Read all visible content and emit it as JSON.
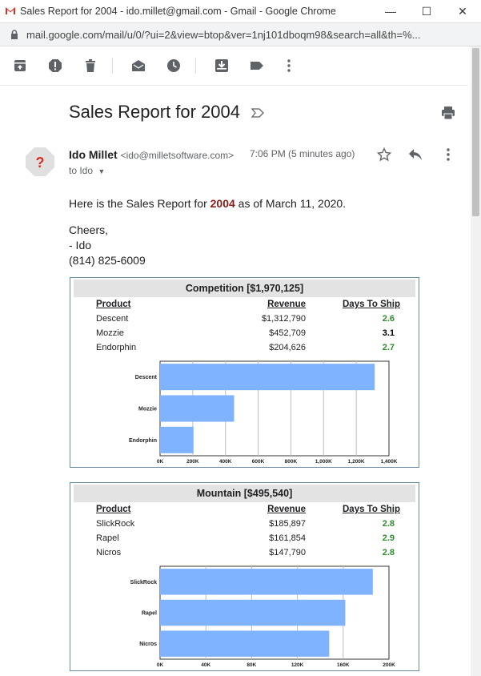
{
  "window": {
    "title": "Sales Report for 2004 - ido.millet@gmail.com - Gmail - Google Chrome",
    "url": "mail.google.com/mail/u/0/?ui=2&view=btop&ver=1nj101dboqm98&search=all&th=%..."
  },
  "toolbar": {
    "icons": [
      "archive-icon",
      "report-spam-icon",
      "delete-icon",
      "mark-unread-icon",
      "snooze-icon",
      "move-to-inbox-icon",
      "label-icon",
      "more-icon"
    ]
  },
  "email": {
    "subject": "Sales Report for 2004",
    "sender_name": "Ido Millet",
    "sender_email": "<ido@milletsoftware.com>",
    "time": "7:06 PM (5 minutes ago)",
    "to": "to Ido",
    "body_prefix": "Here is the Sales Report for ",
    "body_year": "2004",
    "body_suffix": " as of March 11, 2020.",
    "cheers": "Cheers,",
    "signoff": "- Ido",
    "phone": "(814) 825-6009",
    "avatar_glyph": "?"
  },
  "reports": [
    {
      "title": "Competition  [$1,970,125]",
      "headers": {
        "product": "Product",
        "revenue": "Revenue",
        "days": "Days To Ship"
      },
      "rows": [
        {
          "product": "Descent",
          "revenue": "$1,312,790",
          "days": "2.6",
          "late": false
        },
        {
          "product": "Mozzie",
          "revenue": "$452,709",
          "days": "3.1",
          "late": true
        },
        {
          "product": "Endorphin",
          "revenue": "$204,626",
          "days": "2.7",
          "late": false
        }
      ]
    },
    {
      "title": "Mountain  [$495,540]",
      "headers": {
        "product": "Product",
        "revenue": "Revenue",
        "days": "Days To Ship"
      },
      "rows": [
        {
          "product": "SlickRock",
          "revenue": "$185,897",
          "days": "2.8",
          "late": false
        },
        {
          "product": "Rapel",
          "revenue": "$161,854",
          "days": "2.9",
          "late": false
        },
        {
          "product": "Nicros",
          "revenue": "$147,790",
          "days": "2.8",
          "late": false
        }
      ]
    }
  ],
  "chart_data": [
    {
      "type": "bar",
      "orientation": "horizontal",
      "categories": [
        "Descent",
        "Mozzie",
        "Endorphin"
      ],
      "values": [
        1312790,
        452709,
        204626
      ],
      "xlim": [
        0,
        1400000
      ],
      "xticks": [
        "0K",
        "200K",
        "400K",
        "600K",
        "800K",
        "1,000K",
        "1,200K",
        "1,400K"
      ],
      "bar_color": "#7fb2ff",
      "grid": true
    },
    {
      "type": "bar",
      "orientation": "horizontal",
      "categories": [
        "SlickRock",
        "Rapel",
        "Nicros"
      ],
      "values": [
        185897,
        161854,
        147790
      ],
      "xlim": [
        0,
        200000
      ],
      "xticks": [
        "0K",
        "40K",
        "80K",
        "120K",
        "160K",
        "200K"
      ],
      "bar_color": "#7fb2ff",
      "grid": true
    }
  ],
  "colors": {
    "accent_dark_red": "#8b1a1a",
    "ok_green": "#2e8b2e",
    "late_black": "#000000",
    "gmail_red": "#d93025"
  }
}
